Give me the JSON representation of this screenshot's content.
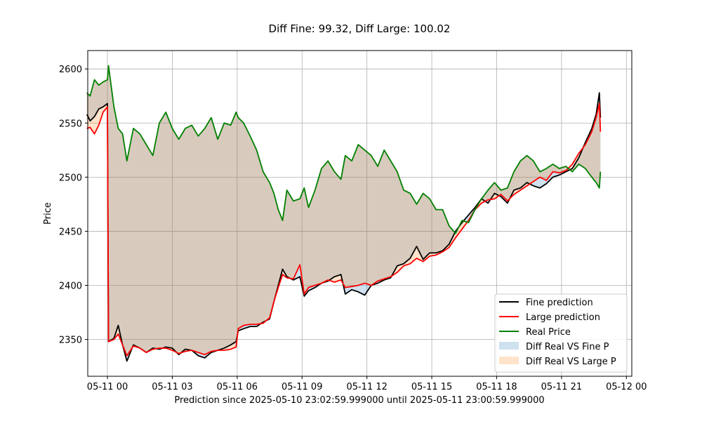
{
  "chart_data": {
    "type": "line",
    "title": "Diff Fine: 99.32, Diff Large: 100.02",
    "xlabel": "Prediction since 2025-05-10 23:02:59.999000 until 2025-05-11 23:00:59.999000",
    "ylabel": "Price",
    "xlim": [
      -0.91,
      24.25
    ],
    "ylim": [
      2316,
      2617
    ],
    "x_ticks": [
      {
        "value": 0,
        "label": "05-11 00"
      },
      {
        "value": 3,
        "label": "05-11 03"
      },
      {
        "value": 6,
        "label": "05-11 06"
      },
      {
        "value": 9,
        "label": "05-11 09"
      },
      {
        "value": 12,
        "label": "05-11 12"
      },
      {
        "value": 15,
        "label": "05-11 15"
      },
      {
        "value": 18,
        "label": "05-11 18"
      },
      {
        "value": 21,
        "label": "05-11 21"
      },
      {
        "value": 24,
        "label": "05-12 00"
      }
    ],
    "y_ticks": [
      {
        "value": 2350,
        "label": "2350"
      },
      {
        "value": 2400,
        "label": "2400"
      },
      {
        "value": 2450,
        "label": "2450"
      },
      {
        "value": 2500,
        "label": "2500"
      },
      {
        "value": 2550,
        "label": "2550"
      },
      {
        "value": 2600,
        "label": "2600"
      }
    ],
    "grid": true,
    "legend_position": "lower-right",
    "x": [
      -0.95,
      -0.8,
      -0.6,
      -0.4,
      -0.2,
      0.0,
      0.05,
      0.3,
      0.5,
      0.7,
      0.9,
      1.2,
      1.5,
      1.8,
      2.1,
      2.4,
      2.7,
      3.0,
      3.3,
      3.6,
      3.9,
      4.2,
      4.5,
      4.8,
      5.1,
      5.4,
      5.7,
      5.95,
      6.05,
      6.3,
      6.6,
      6.9,
      7.2,
      7.5,
      7.7,
      7.9,
      8.1,
      8.3,
      8.6,
      8.9,
      9.1,
      9.3,
      9.6,
      9.9,
      10.2,
      10.5,
      10.8,
      11.0,
      11.3,
      11.6,
      11.9,
      12.2,
      12.5,
      12.8,
      13.1,
      13.4,
      13.7,
      14.0,
      14.3,
      14.6,
      14.9,
      15.2,
      15.5,
      15.8,
      16.1,
      16.4,
      16.7,
      17.0,
      17.3,
      17.6,
      17.9,
      18.2,
      18.5,
      18.8,
      19.1,
      19.4,
      19.7,
      20.0,
      20.3,
      20.6,
      20.9,
      21.2,
      21.5,
      21.8,
      22.1,
      22.4,
      22.6,
      22.75,
      22.8
    ],
    "series": [
      {
        "name": "Fine prediction",
        "color": "#000000",
        "values": [
          2558,
          2552,
          2556,
          2563,
          2565,
          2568,
          2348,
          2351,
          2363,
          2345,
          2330,
          2345,
          2342,
          2338,
          2342,
          2341,
          2343,
          2342,
          2336,
          2341,
          2340,
          2335,
          2333,
          2338,
          2340,
          2342,
          2345,
          2348,
          2358,
          2360,
          2362,
          2362,
          2366,
          2369,
          2385,
          2400,
          2415,
          2408,
          2405,
          2408,
          2390,
          2395,
          2398,
          2402,
          2404,
          2408,
          2410,
          2392,
          2396,
          2394,
          2391,
          2400,
          2402,
          2405,
          2407,
          2418,
          2420,
          2425,
          2436,
          2424,
          2430,
          2430,
          2432,
          2438,
          2450,
          2458,
          2465,
          2472,
          2480,
          2476,
          2485,
          2482,
          2476,
          2488,
          2490,
          2495,
          2492,
          2490,
          2494,
          2500,
          2502,
          2505,
          2508,
          2518,
          2532,
          2545,
          2558,
          2578,
          2555
        ]
      },
      {
        "name": "Large prediction",
        "color": "#ff0000",
        "values": [
          2545,
          2546,
          2540,
          2548,
          2560,
          2565,
          2348,
          2350,
          2355,
          2345,
          2335,
          2344,
          2342,
          2338,
          2341,
          2342,
          2342,
          2340,
          2337,
          2339,
          2340,
          2338,
          2336,
          2339,
          2340,
          2340,
          2341,
          2343,
          2360,
          2363,
          2364,
          2364,
          2365,
          2370,
          2385,
          2398,
          2410,
          2407,
          2406,
          2419,
          2392,
          2398,
          2400,
          2402,
          2405,
          2403,
          2405,
          2398,
          2399,
          2400,
          2402,
          2400,
          2404,
          2406,
          2408,
          2412,
          2418,
          2420,
          2425,
          2422,
          2427,
          2428,
          2431,
          2435,
          2444,
          2452,
          2460,
          2470,
          2476,
          2479,
          2480,
          2484,
          2478,
          2484,
          2488,
          2492,
          2496,
          2500,
          2497,
          2505,
          2504,
          2506,
          2512,
          2522,
          2530,
          2542,
          2555,
          2568,
          2542
        ]
      },
      {
        "name": "Real Price",
        "color": "#008000",
        "values": [
          2578,
          2575,
          2590,
          2585,
          2588,
          2590,
          2603,
          2565,
          2545,
          2540,
          2515,
          2545,
          2540,
          2530,
          2520,
          2550,
          2560,
          2545,
          2535,
          2545,
          2548,
          2538,
          2545,
          2555,
          2535,
          2550,
          2548,
          2560,
          2555,
          2550,
          2538,
          2525,
          2505,
          2495,
          2485,
          2470,
          2460,
          2488,
          2478,
          2480,
          2490,
          2472,
          2488,
          2508,
          2515,
          2505,
          2498,
          2520,
          2515,
          2530,
          2525,
          2520,
          2510,
          2525,
          2515,
          2505,
          2488,
          2485,
          2475,
          2485,
          2480,
          2470,
          2470,
          2455,
          2448,
          2460,
          2458,
          2470,
          2480,
          2488,
          2495,
          2488,
          2490,
          2505,
          2515,
          2520,
          2515,
          2505,
          2508,
          2512,
          2508,
          2510,
          2505,
          2512,
          2508,
          2500,
          2495,
          2490,
          2505
        ]
      }
    ],
    "fills": [
      {
        "name": "Diff Real VS Fine P",
        "color": "#1f77b4",
        "opacity": 0.22,
        "between": [
          "Real Price",
          "Fine prediction"
        ]
      },
      {
        "name": "Diff Real VS Large P",
        "color": "#ff7f0e",
        "opacity": 0.22,
        "between": [
          "Real Price",
          "Large prediction"
        ]
      }
    ]
  }
}
